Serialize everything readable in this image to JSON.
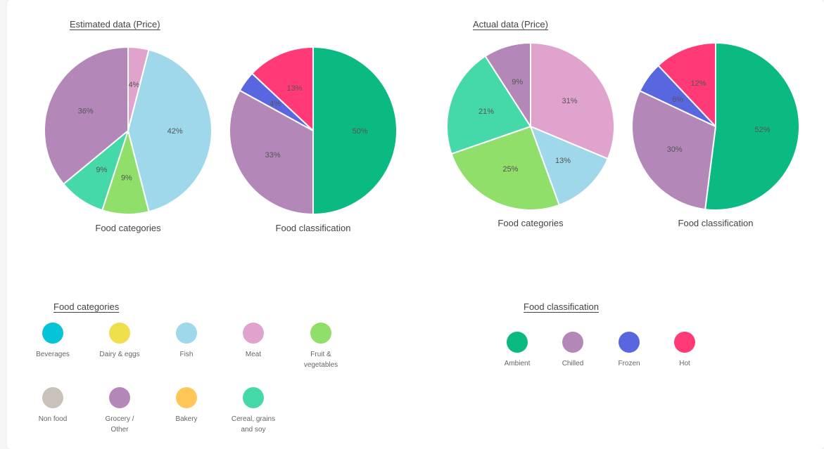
{
  "chart_data": [
    {
      "type": "pie",
      "section": "Estimated data (Price)",
      "caption": "Food categories",
      "slices": [
        {
          "label": "Meat",
          "value": 4,
          "text": "4%",
          "color": "#e0a3cd"
        },
        {
          "label": "Fish",
          "value": 42,
          "text": "42%",
          "color": "#9ed8ea"
        },
        {
          "label": "Fruit & vegetables",
          "value": 9,
          "text": "9%",
          "color": "#8fdf6a"
        },
        {
          "label": "Cereal, grains and soy",
          "value": 9,
          "text": "9%",
          "color": "#45d8a9"
        },
        {
          "label": "Grocery / Other",
          "value": 36,
          "text": "36%",
          "color": "#b387b8"
        }
      ]
    },
    {
      "type": "pie",
      "section": "Estimated data (Price)",
      "caption": "Food classification",
      "slices": [
        {
          "label": "Ambient",
          "value": 50,
          "text": "50%",
          "color": "#0aba82"
        },
        {
          "label": "Chilled",
          "value": 33,
          "text": "33%",
          "color": "#b387b8"
        },
        {
          "label": "Frozen",
          "value": 4,
          "text": "4%",
          "color": "#5866e0"
        },
        {
          "label": "Hot",
          "value": 13,
          "text": "13%",
          "color": "#ff3a77"
        }
      ]
    },
    {
      "type": "pie",
      "section": "Actual data (Price)",
      "caption": "Food categories",
      "slices": [
        {
          "label": "Meat",
          "value": 31,
          "text": "31%",
          "color": "#e0a3cd"
        },
        {
          "label": "Fish",
          "value": 13,
          "text": "13%",
          "color": "#9ed8ea"
        },
        {
          "label": "Fruit & vegetables",
          "value": 25,
          "text": "25%",
          "color": "#8fdf6a"
        },
        {
          "label": "Cereal, grains and soy",
          "value": 21,
          "text": "21%",
          "color": "#45d8a9"
        },
        {
          "label": "Grocery / Other",
          "value": 9,
          "text": "9%",
          "color": "#b387b8"
        }
      ]
    },
    {
      "type": "pie",
      "section": "Actual data (Price)",
      "caption": "Food classification",
      "slices": [
        {
          "label": "Ambient",
          "value": 52,
          "text": "52%",
          "color": "#0aba82"
        },
        {
          "label": "Chilled",
          "value": 30,
          "text": "30%",
          "color": "#b387b8"
        },
        {
          "label": "Frozen",
          "value": 6,
          "text": "6%",
          "color": "#5866e0"
        },
        {
          "label": "Hot",
          "value": 12,
          "text": "12%",
          "color": "#ff3a77"
        }
      ]
    }
  ],
  "sections": {
    "estimated_title": "Estimated data (Price)",
    "actual_title": "Actual data (Price)"
  },
  "legends": {
    "categories": {
      "title": "Food categories",
      "items": [
        {
          "label": "Beverages",
          "color": "#06c4d8"
        },
        {
          "label": "Dairy & eggs",
          "color": "#ede04a"
        },
        {
          "label": "Fish",
          "color": "#9ed8ea"
        },
        {
          "label": "Meat",
          "color": "#e0a3cd"
        },
        {
          "label": "Fruit &\nvegetables",
          "color": "#8fdf6a"
        },
        {
          "label": "Non food",
          "color": "#c9c2bb"
        },
        {
          "label": "Grocery /\nOther",
          "color": "#b387b8"
        },
        {
          "label": "Bakery",
          "color": "#ffc75a"
        },
        {
          "label": "Cereal, grains\nand soy",
          "color": "#45d8a9"
        }
      ]
    },
    "classification": {
      "title": "Food classification",
      "items": [
        {
          "label": "Ambient",
          "color": "#0aba82"
        },
        {
          "label": "Chilled",
          "color": "#b387b8"
        },
        {
          "label": "Frozen",
          "color": "#5866e0"
        },
        {
          "label": "Hot",
          "color": "#ff3a77"
        }
      ]
    }
  }
}
